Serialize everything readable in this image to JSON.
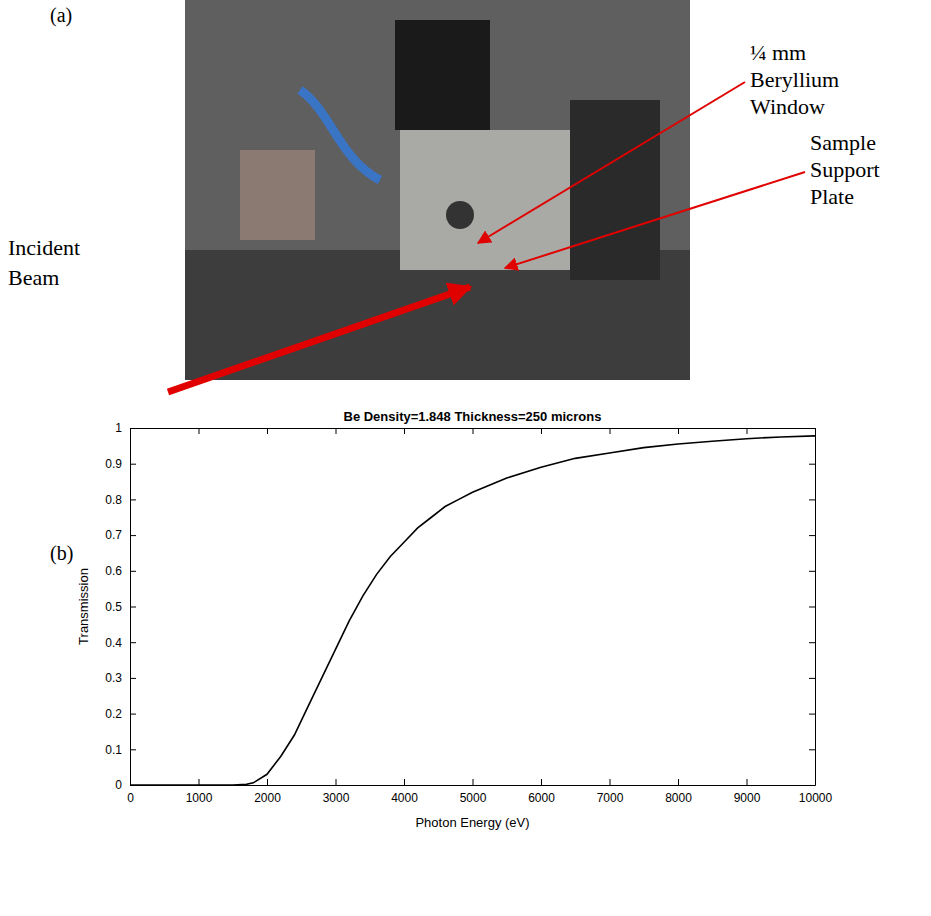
{
  "panel_a": {
    "label": "(a)",
    "callouts": [
      "¼ mm Beryllium Window",
      "Sample Support Plate",
      "Incident Beam"
    ]
  },
  "chart_data": {
    "type": "line",
    "panel_label": "(b)",
    "title": "Be Density=1.848 Thickness=250 microns",
    "x_label": "Photon Energy (eV)",
    "y_label": "Transmission",
    "x": [
      0,
      500,
      1000,
      1500,
      1700,
      1800,
      2000,
      2200,
      2400,
      2600,
      2800,
      3000,
      3200,
      3400,
      3600,
      3800,
      4000,
      4200,
      4400,
      4600,
      4800,
      5000,
      5500,
      6000,
      6500,
      7000,
      7500,
      8000,
      8500,
      9000,
      9500,
      10000
    ],
    "values": [
      0,
      0,
      0,
      0,
      0.002,
      0.006,
      0.03,
      0.08,
      0.14,
      0.22,
      0.3,
      0.38,
      0.46,
      0.53,
      0.59,
      0.64,
      0.68,
      0.72,
      0.75,
      0.78,
      0.8,
      0.82,
      0.86,
      0.89,
      0.915,
      0.93,
      0.945,
      0.955,
      0.963,
      0.97,
      0.975,
      0.978
    ],
    "color": "#000000",
    "line_style": "solid",
    "grid": false,
    "xlim": [
      0,
      10000
    ],
    "ylim": [
      0,
      1
    ],
    "xticks": [
      0,
      1000,
      2000,
      3000,
      4000,
      5000,
      6000,
      7000,
      8000,
      9000,
      10000
    ],
    "yticks": [
      0,
      0.1,
      0.2,
      0.3,
      0.4,
      0.5,
      0.6,
      0.7,
      0.8,
      0.9,
      1
    ]
  }
}
